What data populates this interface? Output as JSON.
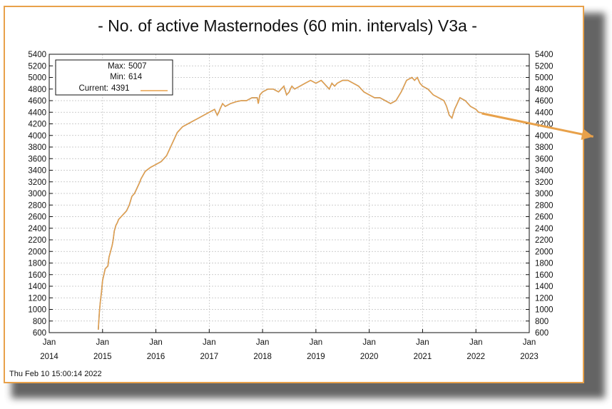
{
  "colors": {
    "series": "#e8a14a",
    "frame": "#e8a14a",
    "arrow": "#e8a14a",
    "grid": "#bdbdbd",
    "text": "#111111",
    "trough": "#111111"
  },
  "timestamp": "Thu Feb 10 15:00:14 2022",
  "chart_data": {
    "type": "line",
    "title": "- No. of active Masternodes (60 min. intervals) V3a -",
    "xlabel": "",
    "ylabel": "",
    "xlim": [
      2014.0,
      2023.0
    ],
    "ylim": [
      600,
      5400
    ],
    "y_ticks": [
      600,
      800,
      1000,
      1200,
      1400,
      1600,
      1800,
      2000,
      2200,
      2400,
      2600,
      2800,
      3000,
      3200,
      3400,
      3600,
      3800,
      4000,
      4200,
      4400,
      4600,
      4800,
      5000,
      5200,
      5400
    ],
    "x_ticks": [
      {
        "value": 2014,
        "month": "Jan",
        "year": "2014"
      },
      {
        "value": 2015,
        "month": "Jan",
        "year": "2015"
      },
      {
        "value": 2016,
        "month": "Jan",
        "year": "2016"
      },
      {
        "value": 2017,
        "month": "Jan",
        "year": "2017"
      },
      {
        "value": 2018,
        "month": "Jan",
        "year": "2018"
      },
      {
        "value": 2019,
        "month": "Jan",
        "year": "2019"
      },
      {
        "value": 2020,
        "month": "Jan",
        "year": "2020"
      },
      {
        "value": 2021,
        "month": "Jan",
        "year": "2021"
      },
      {
        "value": 2022,
        "month": "Jan",
        "year": "2022"
      },
      {
        "value": 2023,
        "month": "Jan",
        "year": "2023"
      }
    ],
    "grid": true,
    "y_axis_both_sides": true,
    "legend": {
      "placement": "top-left",
      "max_label": "Max:",
      "max_value": "5007",
      "min_label": "Min:",
      "min_value": "614",
      "current_label": "Current:",
      "current_value": "4391"
    },
    "series": [
      {
        "x": [
          2014.92,
          2014.94,
          2014.96,
          2014.98,
          2015.0,
          2015.05,
          2015.1,
          2015.12,
          2015.15,
          2015.18,
          2015.2,
          2015.22,
          2015.25,
          2015.28,
          2015.3,
          2015.35,
          2015.4,
          2015.45,
          2015.5,
          2015.55,
          2015.6,
          2015.65,
          2015.7,
          2015.72,
          2015.75,
          2015.8,
          2015.9,
          2016.0,
          2016.1,
          2016.2,
          2016.3,
          2016.4,
          2016.5,
          2016.6,
          2016.7,
          2016.8,
          2016.9,
          2017.0,
          2017.1,
          2017.15,
          2017.18,
          2017.2,
          2017.25,
          2017.3,
          2017.4,
          2017.5,
          2017.6,
          2017.7,
          2017.8,
          2017.9,
          2017.92,
          2017.95,
          2018.0,
          2018.1,
          2018.2,
          2018.3,
          2018.4,
          2018.45,
          2018.5,
          2018.52,
          2018.55,
          2018.6,
          2018.7,
          2018.8,
          2018.9,
          2019.0,
          2019.1,
          2019.2,
          2019.25,
          2019.3,
          2019.35,
          2019.4,
          2019.5,
          2019.6,
          2019.7,
          2019.8,
          2019.9,
          2020.0,
          2020.1,
          2020.2,
          2020.3,
          2020.4,
          2020.5,
          2020.6,
          2020.7,
          2020.8,
          2020.85,
          2020.9,
          2020.95,
          2021.0,
          2021.1,
          2021.2,
          2021.3,
          2021.4,
          2021.45,
          2021.5,
          2021.55,
          2021.6,
          2021.7,
          2021.8,
          2021.9,
          2022.0,
          2022.05,
          2022.11
        ],
        "y": [
          650,
          950,
          1150,
          1300,
          1500,
          1700,
          1750,
          1900,
          2000,
          2100,
          2200,
          2350,
          2450,
          2500,
          2550,
          2600,
          2650,
          2700,
          2800,
          2950,
          3000,
          3100,
          3200,
          3250,
          3300,
          3380,
          3450,
          3500,
          3550,
          3650,
          3850,
          4050,
          4150,
          4200,
          4250,
          4300,
          4350,
          4400,
          4450,
          4350,
          4400,
          4450,
          4550,
          4500,
          4550,
          4580,
          4600,
          4600,
          4650,
          4650,
          4550,
          4700,
          4750,
          4800,
          4800,
          4750,
          4850,
          4700,
          4750,
          4800,
          4850,
          4800,
          4850,
          4900,
          4950,
          4900,
          4950,
          4850,
          4800,
          4900,
          4850,
          4900,
          4950,
          4950,
          4900,
          4850,
          4750,
          4700,
          4650,
          4650,
          4600,
          4550,
          4600,
          4750,
          4950,
          5000,
          4950,
          5000,
          4900,
          4850,
          4800,
          4700,
          4650,
          4600,
          4500,
          4350,
          4300,
          4450,
          4650,
          4600,
          4500,
          4450,
          4400,
          4391
        ]
      }
    ],
    "annotations": [
      {
        "type": "arrow",
        "from": [
          2022.11,
          4380
        ],
        "to": [
          2024.2,
          3980
        ]
      }
    ]
  }
}
